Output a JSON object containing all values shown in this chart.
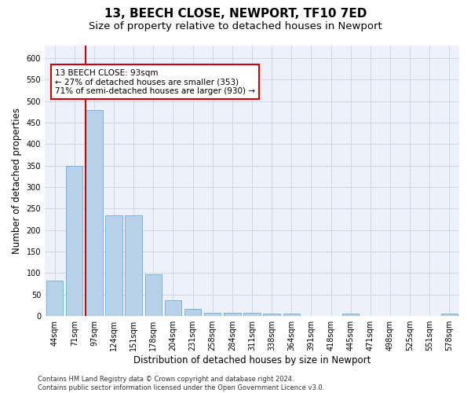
{
  "title": "13, BEECH CLOSE, NEWPORT, TF10 7ED",
  "subtitle": "Size of property relative to detached houses in Newport",
  "xlabel": "Distribution of detached houses by size in Newport",
  "ylabel": "Number of detached properties",
  "bin_labels": [
    "44sqm",
    "71sqm",
    "97sqm",
    "124sqm",
    "151sqm",
    "178sqm",
    "204sqm",
    "231sqm",
    "258sqm",
    "284sqm",
    "311sqm",
    "338sqm",
    "364sqm",
    "391sqm",
    "418sqm",
    "445sqm",
    "471sqm",
    "498sqm",
    "525sqm",
    "551sqm",
    "578sqm"
  ],
  "bar_heights": [
    82,
    350,
    480,
    235,
    235,
    97,
    37,
    17,
    7,
    8,
    8,
    5,
    5,
    0,
    0,
    6,
    0,
    0,
    0,
    0,
    5
  ],
  "bar_color": "#b8d0ea",
  "bar_edge_color": "#6baed6",
  "red_line_color": "#cc0000",
  "annotation_text": "13 BEECH CLOSE: 93sqm\n← 27% of detached houses are smaller (353)\n71% of semi-detached houses are larger (930) →",
  "annotation_box_color": "#ffffff",
  "annotation_box_edge": "#cc0000",
  "ylim": [
    0,
    630
  ],
  "yticks": [
    0,
    50,
    100,
    150,
    200,
    250,
    300,
    350,
    400,
    450,
    500,
    550,
    600
  ],
  "grid_color": "#d0d8e8",
  "bg_color": "#edf2fa",
  "footer_text": "Contains HM Land Registry data © Crown copyright and database right 2024.\nContains public sector information licensed under the Open Government Licence v3.0.",
  "title_fontsize": 11,
  "subtitle_fontsize": 9.5,
  "xlabel_fontsize": 8.5,
  "ylabel_fontsize": 8.5,
  "tick_fontsize": 7,
  "annotation_fontsize": 7.5,
  "footer_fontsize": 6
}
